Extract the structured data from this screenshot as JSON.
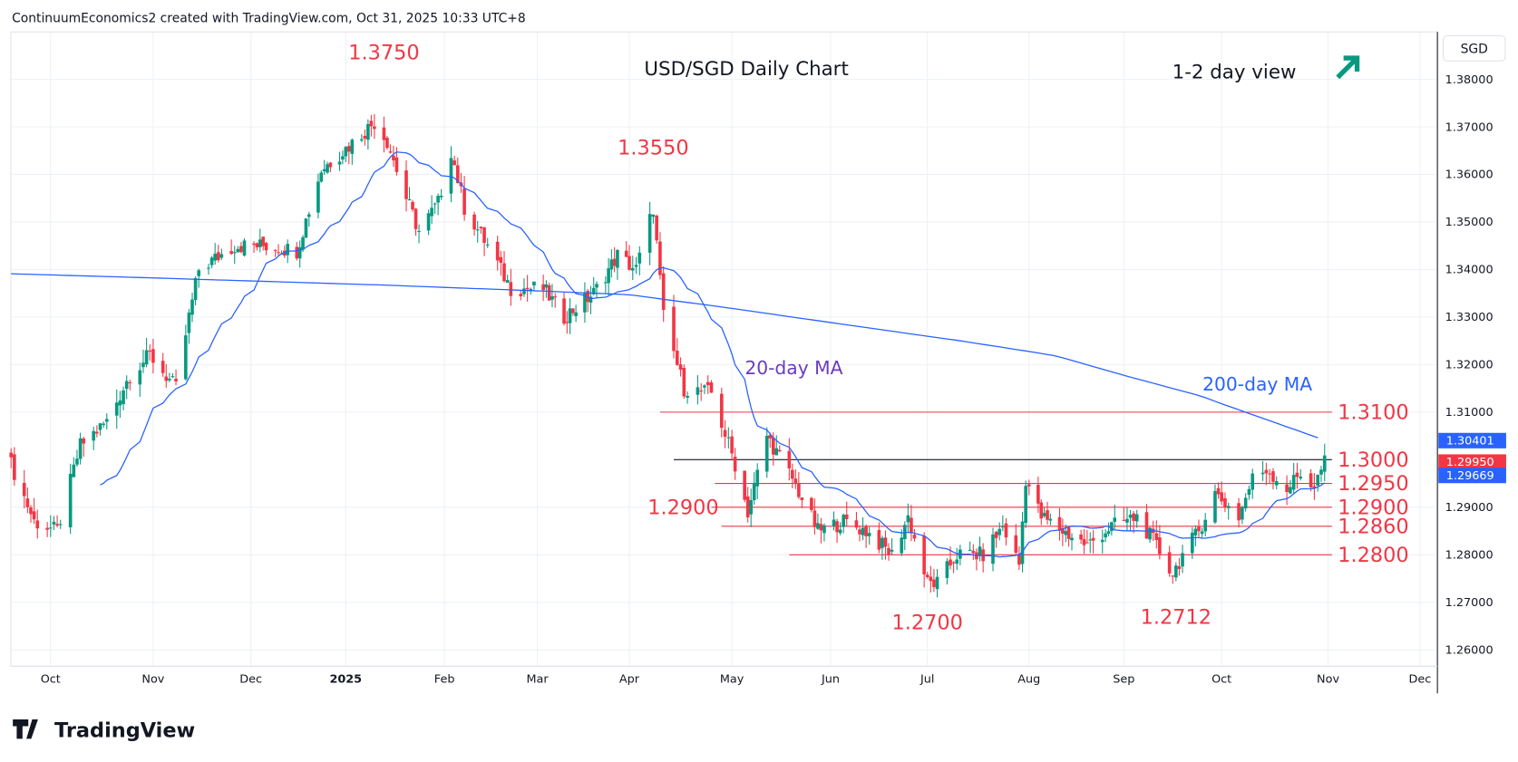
{
  "header": {
    "credit": "ContinuumEconomics2 created with TradingView.com, Oct 31, 2025 10:33 UTC+8"
  },
  "brand": {
    "logo_text": "TradingView"
  },
  "colors": {
    "up": "#089981",
    "down": "#F23645",
    "ma": "#2962FF",
    "annotation": "#F23645",
    "ma20_label": "#6A3CC0",
    "ma200_label": "#2962FF",
    "arrow": "#089981",
    "grid": "#EEF1F6"
  },
  "chart_data": {
    "type": "candlestick",
    "title": "USD/SGD Daily Chart",
    "subtitle": "1-2 day view",
    "outlook_icon": "arrow-up-right-icon",
    "currency": "SGD",
    "ylim": [
      1.255,
      1.3875
    ],
    "y_ticks": [
      "1.38000",
      "1.37000",
      "1.36000",
      "1.35000",
      "1.34000",
      "1.33000",
      "1.32000",
      "1.31000",
      "1.29000",
      "1.28000",
      "1.27000",
      "1.26000"
    ],
    "x_ticks": [
      {
        "label": "Oct",
        "date": "2024-10-01"
      },
      {
        "label": "Nov",
        "date": "2024-11-01"
      },
      {
        "label": "Dec",
        "date": "2024-12-01"
      },
      {
        "label": "2025",
        "date": "2025-01-01",
        "bold": true
      },
      {
        "label": "Feb",
        "date": "2025-02-01"
      },
      {
        "label": "Mar",
        "date": "2025-03-01"
      },
      {
        "label": "Apr",
        "date": "2025-04-01"
      },
      {
        "label": "May",
        "date": "2025-05-01"
      },
      {
        "label": "Jun",
        "date": "2025-06-01"
      },
      {
        "label": "Jul",
        "date": "2025-07-01"
      },
      {
        "label": "Aug",
        "date": "2025-08-01"
      },
      {
        "label": "Sep",
        "date": "2025-09-01"
      },
      {
        "label": "Oct",
        "date": "2025-10-01"
      },
      {
        "label": "Nov",
        "date": "2025-11-01"
      },
      {
        "label": "Dec",
        "date": "2025-12-01"
      }
    ],
    "close_anchors": [
      [
        "2024-09-19",
        1.299
      ],
      [
        "2024-09-26",
        1.287
      ],
      [
        "2024-10-03",
        1.285
      ],
      [
        "2024-10-10",
        1.303
      ],
      [
        "2024-10-18",
        1.308
      ],
      [
        "2024-10-25",
        1.318
      ],
      [
        "2024-10-31",
        1.322
      ],
      [
        "2024-11-08",
        1.315
      ],
      [
        "2024-11-12",
        1.33
      ],
      [
        "2024-11-15",
        1.34
      ],
      [
        "2024-11-26",
        1.345
      ],
      [
        "2024-12-06",
        1.345
      ],
      [
        "2024-12-16",
        1.344
      ],
      [
        "2024-12-24",
        1.361
      ],
      [
        "2025-01-02",
        1.366
      ],
      [
        "2025-01-10",
        1.371
      ],
      [
        "2025-01-14",
        1.367
      ],
      [
        "2025-01-20",
        1.355
      ],
      [
        "2025-01-24",
        1.348
      ],
      [
        "2025-01-30",
        1.354
      ],
      [
        "2025-02-03",
        1.365
      ],
      [
        "2025-02-07",
        1.353
      ],
      [
        "2025-02-14",
        1.345
      ],
      [
        "2025-02-21",
        1.336
      ],
      [
        "2025-03-03",
        1.336
      ],
      [
        "2025-03-10",
        1.33
      ],
      [
        "2025-03-20",
        1.335
      ],
      [
        "2025-03-28",
        1.343
      ],
      [
        "2025-04-03",
        1.34
      ],
      [
        "2025-04-08",
        1.353
      ],
      [
        "2025-04-11",
        1.33
      ],
      [
        "2025-04-17",
        1.315
      ],
      [
        "2025-04-25",
        1.314
      ],
      [
        "2025-05-02",
        1.299
      ],
      [
        "2025-05-06",
        1.289
      ],
      [
        "2025-05-12",
        1.305
      ],
      [
        "2025-05-20",
        1.296
      ],
      [
        "2025-05-28",
        1.285
      ],
      [
        "2025-06-05",
        1.287
      ],
      [
        "2025-06-12",
        1.285
      ],
      [
        "2025-06-20",
        1.28
      ],
      [
        "2025-06-25",
        1.288
      ],
      [
        "2025-07-01",
        1.274
      ],
      [
        "2025-07-04",
        1.274
      ],
      [
        "2025-07-10",
        1.28
      ],
      [
        "2025-07-18",
        1.28
      ],
      [
        "2025-07-24",
        1.286
      ],
      [
        "2025-07-29",
        1.278
      ],
      [
        "2025-07-31",
        1.296
      ],
      [
        "2025-08-05",
        1.288
      ],
      [
        "2025-08-12",
        1.285
      ],
      [
        "2025-08-20",
        1.282
      ],
      [
        "2025-08-28",
        1.286
      ],
      [
        "2025-09-05",
        1.288
      ],
      [
        "2025-09-10",
        1.283
      ],
      [
        "2025-09-16",
        1.276
      ],
      [
        "2025-09-19",
        1.28
      ],
      [
        "2025-09-24",
        1.285
      ],
      [
        "2025-09-29",
        1.293
      ],
      [
        "2025-10-06",
        1.288
      ],
      [
        "2025-10-10",
        1.296
      ],
      [
        "2025-10-14",
        1.298
      ],
      [
        "2025-10-20",
        1.294
      ],
      [
        "2025-10-24",
        1.297
      ],
      [
        "2025-10-28",
        1.2945
      ],
      [
        "2025-10-31",
        1.2995
      ]
    ],
    "ma200_anchors": [
      [
        "2024-09-19",
        1.3391
      ],
      [
        "2025-01-14",
        1.3367
      ],
      [
        "2025-04-01",
        1.3347
      ],
      [
        "2025-07-10",
        1.3251
      ],
      [
        "2025-08-10",
        1.3218
      ],
      [
        "2025-09-25",
        1.3133
      ],
      [
        "2025-10-31",
        1.3041
      ]
    ],
    "ma_labels": {
      "ma20": "20-day MA",
      "ma200": "200-day MA"
    },
    "levels": [
      {
        "value": 1.31,
        "label": "1.3100",
        "from": "2025-04-10",
        "color": "#F23645"
      },
      {
        "value": 1.3,
        "label": "1.3000",
        "from": "2025-04-14",
        "color": "#131722"
      },
      {
        "value": 1.295,
        "label": "1.2950",
        "from": "2025-04-26",
        "color": "#F23645"
      },
      {
        "value": 1.29,
        "label": "1.2900",
        "from": "2025-04-25",
        "color": "#F23645"
      },
      {
        "value": 1.286,
        "label": "1.2860",
        "from": "2025-04-28",
        "color": "#F23645"
      },
      {
        "value": 1.28,
        "label": "1.2800",
        "from": "2025-05-19",
        "color": "#F23645"
      }
    ],
    "annotations": [
      {
        "label": "1.3750",
        "date": "2025-01-13",
        "value": 1.375,
        "pos": "above"
      },
      {
        "label": "1.3550",
        "date": "2025-04-08",
        "value": 1.355,
        "pos": "above"
      },
      {
        "label": "1.2900",
        "date": "2025-04-30",
        "value": 1.29,
        "pos": "left"
      },
      {
        "label": "1.2700",
        "date": "2025-07-01",
        "value": 1.27,
        "pos": "below"
      },
      {
        "label": "1.2712",
        "date": "2025-09-17",
        "value": 1.2712,
        "pos": "below"
      }
    ],
    "price_tags": [
      {
        "label": "1.30401",
        "value": 1.30401,
        "color": "#2962FF"
      },
      {
        "label": "1.29950",
        "value": 1.2995,
        "color": "#F23645"
      },
      {
        "label": "1.29669",
        "value": 1.29669,
        "color": "#2962FF"
      }
    ]
  }
}
